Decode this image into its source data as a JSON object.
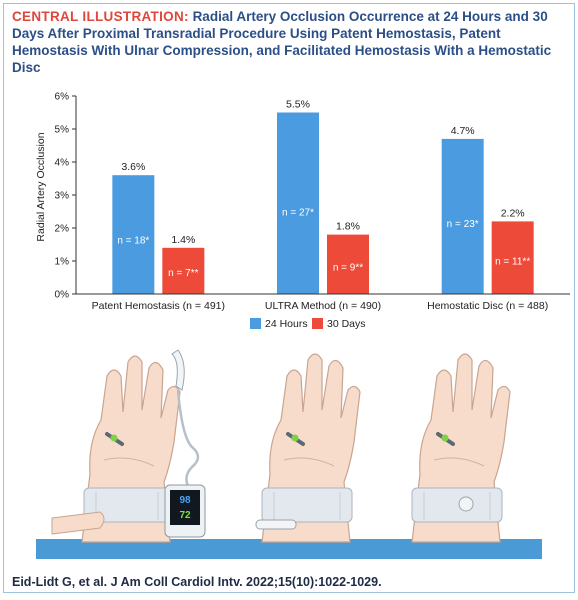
{
  "header": {
    "tag": "CENTRAL ILLUSTRATION:",
    "title": "Radial Artery Occlusion Occurrence at 24 Hours and 30 Days After Proximal Transradial Procedure Using Patent Hemostasis, Patent Hemostasis With Ulnar Compression, and Facilitated Hemostasis With a Hemostatic Disc"
  },
  "chart_data": {
    "type": "bar",
    "title": "",
    "xlabel": "",
    "ylabel": "Radial Artery Occlusion",
    "ylim": [
      0,
      6
    ],
    "yticks": [
      "0%",
      "1%",
      "2%",
      "3%",
      "4%",
      "5%",
      "6%"
    ],
    "grid": false,
    "legend": "bottom-center",
    "categories": [
      "Patent Hemostasis (n = 491)",
      "ULTRA Method (n = 490)",
      "Hemostatic Disc (n = 488)"
    ],
    "series": [
      {
        "name": "24 Hours",
        "color": "#4a9be0",
        "values": [
          3.6,
          5.5,
          4.7
        ],
        "value_labels": [
          "3.6%",
          "5.5%",
          "4.7%"
        ],
        "n_labels": [
          "n = 18*",
          "n = 27*",
          "n = 23*"
        ]
      },
      {
        "name": "30 Days",
        "color": "#ee4a3a",
        "values": [
          1.4,
          1.8,
          2.2
        ],
        "value_labels": [
          "1.4%",
          "1.8%",
          "2.2%"
        ],
        "n_labels": [
          "n = 7**",
          "n = 9**",
          "n = 11**"
        ]
      }
    ]
  },
  "illustration": {
    "monitor_value_top": "98",
    "monitor_value_bottom": "72"
  },
  "citation": "Eid-Lidt G, et al. J Am Coll Cardiol Intv. 2022;15(10):1022-1029."
}
